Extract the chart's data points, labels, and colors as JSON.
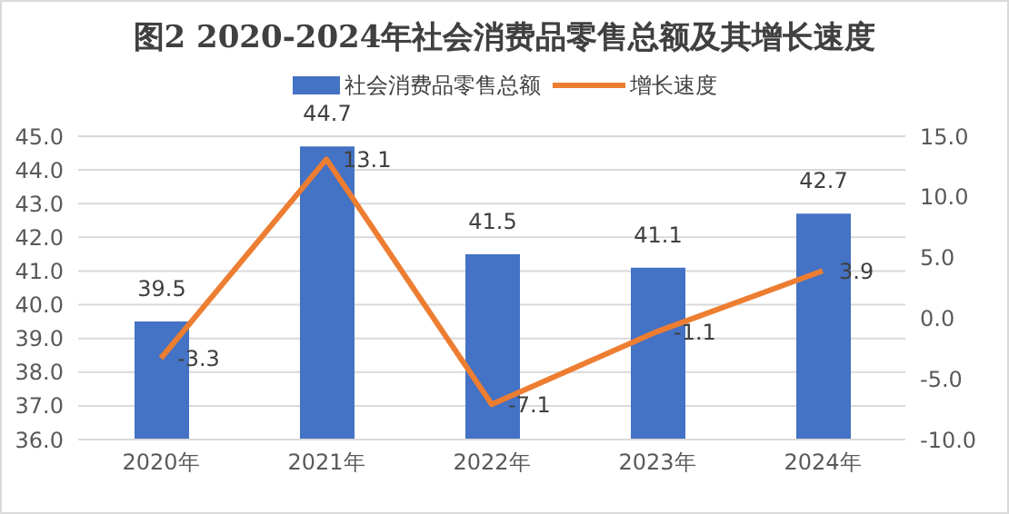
{
  "chart_data": {
    "type": "bar",
    "title": "图2  2020-2024年社会消费品零售总额及其增长速度",
    "categories": [
      "2020年",
      "2021年",
      "2022年",
      "2023年",
      "2024年"
    ],
    "series": [
      {
        "name": "社会消费品零售总额",
        "color": "#4472c4",
        "values": [
          39.5,
          44.7,
          41.5,
          41.1,
          42.7
        ]
      },
      {
        "name": "增长速度",
        "type": "line",
        "axis": "y2",
        "color": "#ed7d31",
        "values": [
          -3.3,
          13.1,
          -7.1,
          -1.1,
          3.9
        ]
      }
    ],
    "ylim": [
      36,
      45
    ],
    "yticks": [
      {
        "value": 36,
        "label": "36.0"
      },
      {
        "value": 37,
        "label": "37.0"
      },
      {
        "value": 38,
        "label": "38.0"
      },
      {
        "value": 39,
        "label": "39.0"
      },
      {
        "value": 40,
        "label": "40.0"
      },
      {
        "value": 41,
        "label": "41.0"
      },
      {
        "value": 42,
        "label": "42.0"
      },
      {
        "value": 43,
        "label": "43.0"
      },
      {
        "value": 44,
        "label": "44.0"
      },
      {
        "value": 45,
        "label": "45.0"
      }
    ],
    "y2lim": [
      -10,
      15
    ],
    "y2ticks": [
      {
        "value": -10,
        "label": "-10.0"
      },
      {
        "value": -5,
        "label": "-5.0"
      },
      {
        "value": 0,
        "label": "0.0"
      },
      {
        "value": 5,
        "label": "5.0"
      },
      {
        "value": 10,
        "label": "10.0"
      },
      {
        "value": 15,
        "label": "15.0"
      }
    ],
    "grid": "y",
    "legend": "top",
    "marker": "none",
    "line_style": "solid",
    "data_labels": true
  }
}
